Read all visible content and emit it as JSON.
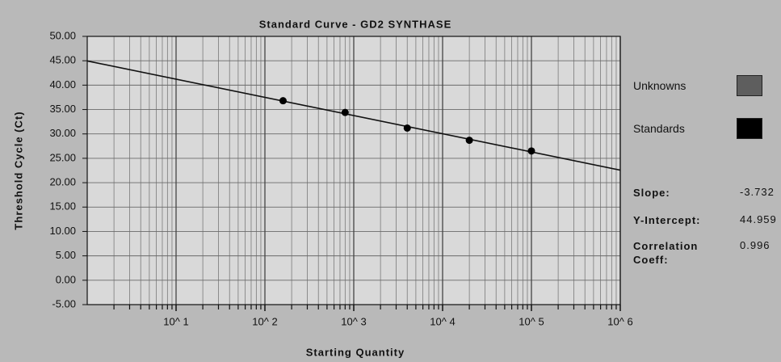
{
  "chart_data": {
    "type": "scatter",
    "title": "Standard Curve - GD2 SYNTHASE",
    "x_label": "Starting Quantity",
    "y_label": "Threshold Cycle (Ct)",
    "log_x": true,
    "grid": true,
    "xlim": [
      1,
      1000000
    ],
    "ylim": [
      -5,
      50
    ],
    "xticks": [
      {
        "value": 10,
        "label": "10^ 1"
      },
      {
        "value": 100,
        "label": "10^ 2"
      },
      {
        "value": 1000,
        "label": "10^ 3"
      },
      {
        "value": 10000,
        "label": "10^ 4"
      },
      {
        "value": 100000,
        "label": "10^ 5"
      },
      {
        "value": 1000000,
        "label": "10^ 6"
      }
    ],
    "yticks": [
      {
        "value": -5,
        "label": "-5.00"
      },
      {
        "value": 0,
        "label": "0.00"
      },
      {
        "value": 5,
        "label": "5.00"
      },
      {
        "value": 10,
        "label": "10.00"
      },
      {
        "value": 15,
        "label": "15.00"
      },
      {
        "value": 20,
        "label": "20.00"
      },
      {
        "value": 25,
        "label": "25.00"
      },
      {
        "value": 30,
        "label": "30.00"
      },
      {
        "value": 35,
        "label": "35.00"
      },
      {
        "value": 40,
        "label": "40.00"
      },
      {
        "value": 45,
        "label": "45.00"
      },
      {
        "value": 50,
        "label": "50.00"
      }
    ],
    "series": [
      {
        "name": "Unknowns",
        "color": "#5e5e5e",
        "x": [],
        "values": []
      },
      {
        "name": "Standards",
        "color": "#000000",
        "x": [
          160,
          800,
          4000,
          20000,
          100000
        ],
        "values": [
          36.8,
          34.4,
          31.2,
          28.7,
          26.5
        ]
      }
    ],
    "stats": [
      {
        "label": "Slope:",
        "value": -3.732
      },
      {
        "label": "Y-Intercept:",
        "value": 44.959
      },
      {
        "label": "Correlation Coeff:",
        "value": 0.996
      }
    ]
  }
}
